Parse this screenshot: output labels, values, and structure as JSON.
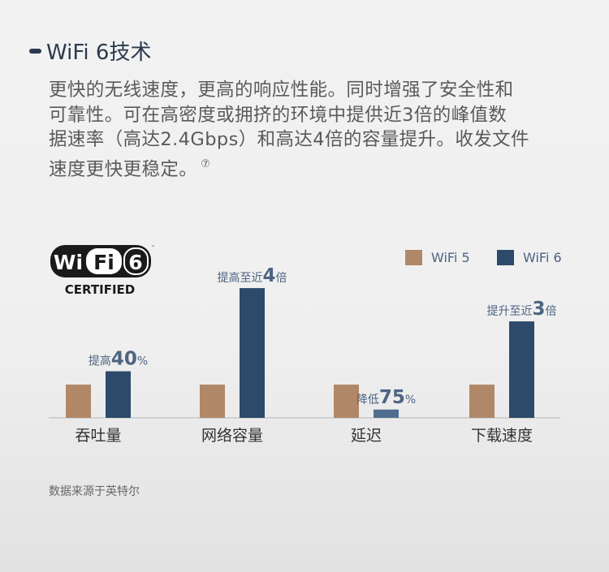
{
  "title": "WiFi 6技术",
  "paragraph_lines": [
    "更快的无线速度，更高的响应性能。同时增强了安全性和",
    "可靠性。可在高密度或拥挤的环境中提供近3倍的峰值数",
    "据速率（高达2.4Gbps）和高达4倍的容量提升。收发文件",
    "速度更快更稳定。"
  ],
  "footnote": "⑦",
  "logo": {
    "text": "WiFi 6 CERTIFIED",
    "tm": "™"
  },
  "source": "数据来源于英特尔",
  "colors": {
    "wifi5": "#b08868",
    "wifi6": "#2d4a6b",
    "wifi6_light": "#4f6d8e",
    "text": "#4d6482"
  },
  "chart_data": {
    "type": "bar",
    "categories": [
      "吞吐量",
      "网络容量",
      "延迟",
      "下载速度"
    ],
    "series": [
      {
        "name": "WiFi 5",
        "values": [
          1,
          1,
          1,
          1
        ]
      },
      {
        "name": "WiFi 6",
        "values": [
          1.4,
          3.9,
          0.25,
          2.9
        ]
      }
    ],
    "annotations": [
      {
        "prefix": "提高",
        "num": "40",
        "suffix": "%"
      },
      {
        "prefix": "提高至近",
        "num": "4",
        "suffix": "倍"
      },
      {
        "prefix": "降低",
        "num": "75",
        "suffix": "%"
      },
      {
        "prefix": "提升至近",
        "num": "3",
        "suffix": "倍"
      }
    ],
    "legend": "top-right",
    "grid": false
  }
}
